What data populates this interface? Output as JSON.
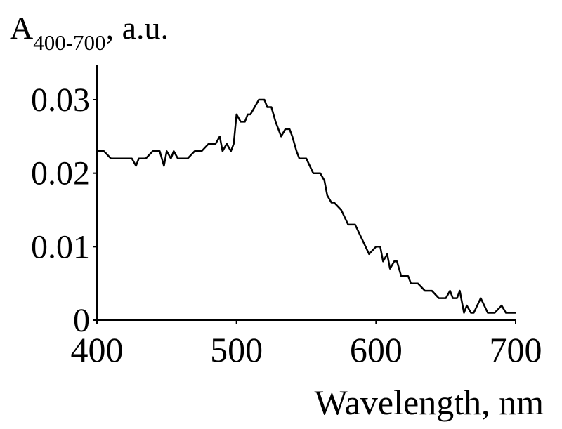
{
  "chart_data": {
    "type": "line",
    "ylabel_main": "A",
    "ylabel_sub": "400-700",
    "ylabel_unit": ", a.u.",
    "xlabel": "Wavelength, nm",
    "xlim": [
      400,
      700
    ],
    "ylim": [
      0,
      0.034
    ],
    "xticks": [
      400,
      500,
      600,
      700
    ],
    "xtick_labels": [
      "400",
      "500",
      "600",
      "700"
    ],
    "yticks": [
      0,
      0.01,
      0.02,
      0.03
    ],
    "ytick_labels": [
      "0",
      "0.01",
      "0.02",
      "0.03"
    ],
    "grid": false,
    "line_color": "#000000",
    "series": [
      {
        "x": [
          400,
          405,
          410,
          415,
          420,
          425,
          428,
          430,
          435,
          440,
          445,
          448,
          450,
          453,
          455,
          458,
          460,
          465,
          470,
          475,
          480,
          485,
          488,
          490,
          493,
          496,
          498,
          500,
          503,
          506,
          508,
          510,
          513,
          516,
          518,
          520,
          522,
          525,
          528,
          530,
          532,
          535,
          538,
          540,
          543,
          545,
          548,
          550,
          555,
          560,
          563,
          565,
          568,
          570,
          575,
          580,
          585,
          590,
          595,
          600,
          603,
          605,
          608,
          610,
          613,
          615,
          618,
          620,
          623,
          625,
          630,
          635,
          640,
          645,
          650,
          653,
          655,
          658,
          660,
          663,
          665,
          668,
          670,
          675,
          680,
          683,
          685,
          690,
          693,
          695,
          700
        ],
        "y": [
          0.023,
          0.023,
          0.022,
          0.022,
          0.022,
          0.022,
          0.021,
          0.022,
          0.022,
          0.023,
          0.023,
          0.021,
          0.023,
          0.022,
          0.023,
          0.022,
          0.022,
          0.022,
          0.023,
          0.023,
          0.024,
          0.024,
          0.025,
          0.023,
          0.024,
          0.023,
          0.024,
          0.028,
          0.027,
          0.027,
          0.028,
          0.028,
          0.029,
          0.03,
          0.03,
          0.03,
          0.029,
          0.029,
          0.027,
          0.026,
          0.025,
          0.026,
          0.026,
          0.025,
          0.023,
          0.022,
          0.022,
          0.022,
          0.02,
          0.02,
          0.019,
          0.017,
          0.016,
          0.016,
          0.015,
          0.013,
          0.013,
          0.011,
          0.009,
          0.01,
          0.01,
          0.008,
          0.009,
          0.007,
          0.008,
          0.008,
          0.006,
          0.006,
          0.006,
          0.005,
          0.005,
          0.004,
          0.004,
          0.003,
          0.003,
          0.004,
          0.003,
          0.003,
          0.004,
          0.001,
          0.002,
          0.001,
          0.001,
          0.003,
          0.001,
          0.001,
          0.001,
          0.002,
          0.001,
          0.001,
          0.001
        ]
      }
    ]
  }
}
